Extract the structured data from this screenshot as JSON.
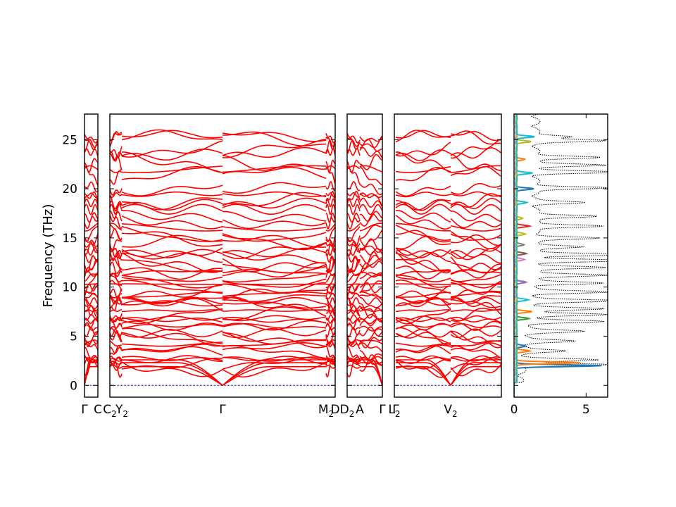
{
  "chart_data": {
    "type": "line",
    "ylabel": "Frequency (THz)",
    "ylim": [
      -1.2,
      27.6
    ],
    "y_ticks": [
      0,
      5,
      10,
      15,
      20,
      25
    ],
    "band_color": "#ff0000",
    "zero_line_color": "#0000cc",
    "panels": [
      {
        "id": "p1",
        "segment_labels": [
          "Γ",
          "C"
        ],
        "tick_labels": [
          {
            "text": "Γ",
            "sub": ""
          },
          {
            "text": "C",
            "sub": ""
          }
        ]
      },
      {
        "id": "p2",
        "segment_labels": [
          "C2",
          "Y2",
          "Γ",
          "M2",
          "D"
        ],
        "tick_labels": [
          {
            "text": "C",
            "sub": "2"
          },
          {
            "text": "Y",
            "sub": "2"
          },
          {
            "text": "Γ",
            "sub": ""
          },
          {
            "text": "M",
            "sub": "2"
          },
          {
            "text": "D",
            "sub": ""
          }
        ]
      },
      {
        "id": "p3",
        "segment_labels": [
          "D2",
          "A",
          "Γ"
        ],
        "tick_labels": [
          {
            "text": "D",
            "sub": "2"
          },
          {
            "text": "A",
            "sub": ""
          },
          {
            "text": "Γ",
            "sub": ""
          }
        ]
      },
      {
        "id": "p4",
        "segment_labels": [
          "L2",
          "Γ",
          "V2"
        ],
        "tick_labels": [
          {
            "text": "L",
            "sub": "2"
          },
          {
            "text": "Γ",
            "sub": ""
          },
          {
            "text": "V",
            "sub": "2"
          }
        ]
      }
    ],
    "dos": {
      "xlim": [
        0,
        6.5
      ],
      "x_ticks": [
        0,
        5
      ],
      "total_style": "dotted",
      "total_color": "#000000",
      "total_peaks": [
        {
          "f": 2.1,
          "v": 6.2
        },
        {
          "f": 2.6,
          "v": 4.9
        },
        {
          "f": 3.5,
          "v": 2.5
        },
        {
          "f": 4.5,
          "v": 3.0
        },
        {
          "f": 5.5,
          "v": 3.5
        },
        {
          "f": 6.5,
          "v": 4.7
        },
        {
          "f": 7.2,
          "v": 5.2
        },
        {
          "f": 7.8,
          "v": 4.6
        },
        {
          "f": 8.6,
          "v": 5.7
        },
        {
          "f": 9.5,
          "v": 5.1
        },
        {
          "f": 10.4,
          "v": 4.6
        },
        {
          "f": 11.2,
          "v": 5.2
        },
        {
          "f": 12.0,
          "v": 4.9
        },
        {
          "f": 12.7,
          "v": 6.5
        },
        {
          "f": 13.3,
          "v": 6.5
        },
        {
          "f": 14.1,
          "v": 3.5
        },
        {
          "f": 15.0,
          "v": 4.4
        },
        {
          "f": 16.2,
          "v": 5.0
        },
        {
          "f": 17.2,
          "v": 4.5
        },
        {
          "f": 18.6,
          "v": 3.2
        },
        {
          "f": 20.1,
          "v": 5.0
        },
        {
          "f": 21.7,
          "v": 5.7
        },
        {
          "f": 22.4,
          "v": 5.0
        },
        {
          "f": 23.2,
          "v": 4.6
        },
        {
          "f": 24.9,
          "v": 4.6
        },
        {
          "f": 25.3,
          "v": 2.7
        }
      ],
      "partial_colors": [
        "#1f77b4",
        "#ff7f0e",
        "#2ca02c",
        "#d62728",
        "#9467bd",
        "#8c564b",
        "#e377c2",
        "#7f7f7f",
        "#bcbd22",
        "#17becf"
      ],
      "partial_peaks": [
        {
          "f": 2.0,
          "v": 5.9,
          "c": 0
        },
        {
          "f": 2.3,
          "v": 4.4,
          "c": 1
        },
        {
          "f": 3.5,
          "v": 0.9,
          "c": 1
        },
        {
          "f": 4.0,
          "v": 0.6,
          "c": 0
        },
        {
          "f": 7.5,
          "v": 1.1,
          "c": 1
        },
        {
          "f": 6.8,
          "v": 0.9,
          "c": 2
        },
        {
          "f": 8.7,
          "v": 0.8,
          "c": 9
        },
        {
          "f": 10.5,
          "v": 0.7,
          "c": 4
        },
        {
          "f": 12.8,
          "v": 0.6,
          "c": 6
        },
        {
          "f": 13.4,
          "v": 0.7,
          "c": 5
        },
        {
          "f": 14.3,
          "v": 0.5,
          "c": 7
        },
        {
          "f": 15.4,
          "v": 0.6,
          "c": 8
        },
        {
          "f": 16.2,
          "v": 0.9,
          "c": 3
        },
        {
          "f": 17.0,
          "v": 0.4,
          "c": 8
        },
        {
          "f": 18.6,
          "v": 0.7,
          "c": 9
        },
        {
          "f": 20.0,
          "v": 1.2,
          "c": 0
        },
        {
          "f": 21.6,
          "v": 1.1,
          "c": 9
        },
        {
          "f": 23.0,
          "v": 0.6,
          "c": 1
        },
        {
          "f": 24.8,
          "v": 1.0,
          "c": 8
        },
        {
          "f": 25.3,
          "v": 1.3,
          "c": 9
        }
      ]
    }
  }
}
